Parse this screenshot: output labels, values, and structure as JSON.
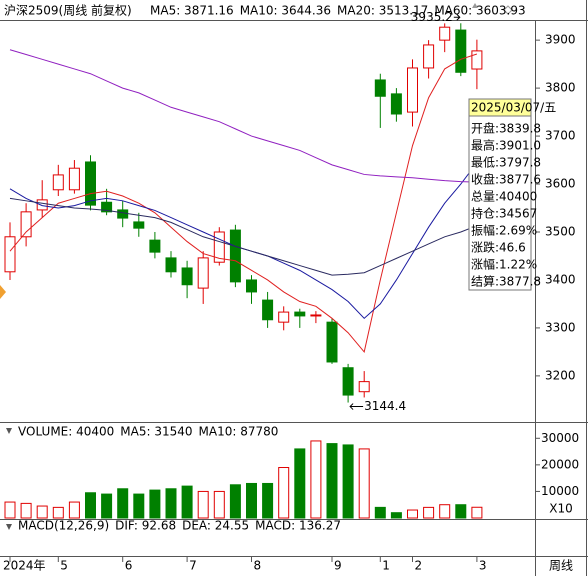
{
  "chart_data": {
    "type": "candlestick",
    "title": "沪深2509(周线 前复权)",
    "legend": [
      {
        "text": "MA5: 3871.16",
        "color": "#e02020"
      },
      {
        "text": "MA10: 3644.36",
        "color": "#1a1aa0"
      },
      {
        "text": "MA20: 3513.17",
        "color": "#2a2a60"
      },
      {
        "text": "MA60: 3603.93",
        "color": "#9020c0"
      }
    ],
    "categories": [
      "2024年",
      null,
      null,
      "5",
      null,
      null,
      null,
      "6",
      null,
      null,
      null,
      "7",
      null,
      null,
      null,
      "8",
      null,
      null,
      null,
      null,
      "9",
      null,
      null,
      "1",
      null,
      "2",
      null,
      null,
      null,
      "3"
    ],
    "open": [
      3417,
      3490,
      3546,
      3588,
      3588,
      3646,
      3562,
      3546,
      3521,
      3483,
      3446,
      3425,
      3383,
      3437,
      3504,
      3400,
      3358,
      3312,
      3333,
      3325,
      3312,
      3217,
      3167,
      3817,
      3788,
      3750,
      3842,
      3900,
      3921,
      3839.8
    ],
    "high": [
      3520,
      3560,
      3608,
      3640,
      3650,
      3660,
      3590,
      3565,
      3540,
      3500,
      3460,
      3440,
      3460,
      3510,
      3515,
      3410,
      3375,
      3345,
      3340,
      3335,
      3320,
      3225,
      3210,
      3830,
      3800,
      3860,
      3900,
      3935,
      3935.2,
      3901
    ],
    "low": [
      3400,
      3470,
      3530,
      3575,
      3580,
      3545,
      3535,
      3510,
      3490,
      3445,
      3405,
      3362,
      3350,
      3430,
      3385,
      3350,
      3300,
      3295,
      3300,
      3310,
      3225,
      3144.4,
      3155,
      3717,
      3730,
      3720,
      3820,
      3875,
      3825,
      3797.8
    ],
    "close": [
      3490,
      3542,
      3567,
      3619,
      3633,
      3556,
      3542,
      3529,
      3508,
      3458,
      3417,
      3390,
      3446,
      3500,
      3396,
      3375,
      3317,
      3333,
      3325,
      3327,
      3229,
      3160,
      3188,
      3783,
      3746,
      3842,
      3890,
      3927,
      3833,
      3877.6
    ],
    "up_color": "#e00000",
    "down_color": "#008000",
    "series": [
      {
        "name": "MA5",
        "color": "#e02020",
        "values": [
          3460,
          3500,
          3530,
          3560,
          3570,
          3580,
          3585,
          3575,
          3560,
          3540,
          3510,
          3480,
          3455,
          3445,
          3440,
          3420,
          3400,
          3375,
          3355,
          3345,
          3320,
          3290,
          3250,
          3400,
          3540,
          3680,
          3780,
          3840,
          3860,
          3871.16
        ]
      },
      {
        "name": "MA10",
        "color": "#1a1aa0",
        "values": [
          3590,
          3570,
          3555,
          3550,
          3555,
          3565,
          3570,
          3565,
          3555,
          3545,
          3530,
          3515,
          3500,
          3485,
          3470,
          3460,
          3450,
          3435,
          3420,
          3400,
          3380,
          3355,
          3320,
          3350,
          3400,
          3455,
          3510,
          3560,
          3600,
          3644.36
        ]
      },
      {
        "name": "MA20",
        "color": "#2a2a60",
        "values": [
          3570,
          3565,
          3560,
          3555,
          3550,
          3548,
          3545,
          3540,
          3535,
          3530,
          3520,
          3505,
          3490,
          3480,
          3470,
          3460,
          3450,
          3440,
          3430,
          3420,
          3410,
          3412,
          3415,
          3430,
          3445,
          3460,
          3475,
          3490,
          3500,
          3513.17
        ]
      },
      {
        "name": "MA60",
        "color": "#9020c0",
        "values": [
          3880,
          3870,
          3860,
          3850,
          3840,
          3830,
          3815,
          3800,
          3790,
          3775,
          3760,
          3750,
          3740,
          3730,
          3715,
          3700,
          3690,
          3680,
          3670,
          3655,
          3640,
          3630,
          3620,
          3617,
          3615,
          3613,
          3610,
          3607,
          3605,
          3603.93
        ]
      }
    ],
    "ylim": [
      3108,
      3942
    ],
    "yticks": [
      3200,
      3300,
      3400,
      3500,
      3600,
      3700,
      3800,
      3900
    ],
    "annotations": [
      {
        "text": "3935.2",
        "index": 28
      },
      {
        "text": "3144.4",
        "index": 21
      }
    ],
    "volume": {
      "legend": [
        {
          "text": "VOLUME: 40400",
          "color": "#1a1aa0"
        },
        {
          "text": "MA5: 31540",
          "color": "#e02020"
        },
        {
          "text": "MA10: 87780",
          "color": "#1a1aa0"
        }
      ],
      "values": [
        6000,
        5500,
        4500,
        4000,
        6000,
        9500,
        9000,
        11000,
        9000,
        10500,
        11000,
        12000,
        10000,
        10000,
        12500,
        13000,
        13000,
        19000,
        26000,
        29000,
        28000,
        27500,
        26000,
        4000,
        2000,
        3000,
        4000,
        5000,
        5000,
        4040
      ],
      "ylim": [
        0,
        35000
      ],
      "yticks": [
        10000,
        20000,
        30000
      ],
      "scale_label": "X10"
    },
    "macd": {
      "legend": [
        {
          "text": "MACD(12,26,9)",
          "color": "#000000"
        },
        {
          "text": "DIF: 92.68",
          "color": "#e02020"
        },
        {
          "text": "DEA: 24.55",
          "color": "#1a1aa0"
        },
        {
          "text": "MACD: 136.27",
          "color": "#9020c0"
        }
      ]
    },
    "period_label": "周线",
    "info_box": {
      "title": "2025/03/07/五",
      "rows": [
        "开盘:3839.8",
        "最高:3901.0",
        "最低:3797.8",
        "收盘:3877.6",
        "总量:40400",
        "持仓:34567",
        "振幅:2.69%",
        "涨跌:46.6",
        "涨幅:1.22%",
        "结算:3877.8"
      ]
    }
  }
}
